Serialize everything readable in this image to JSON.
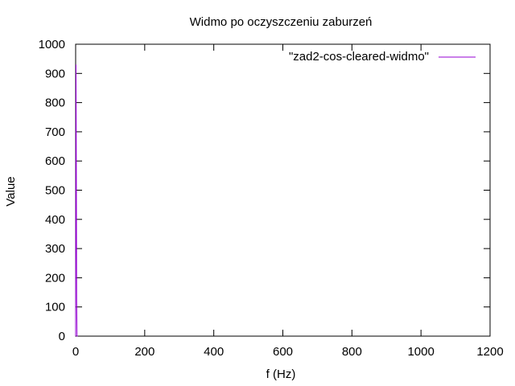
{
  "chart_data": {
    "type": "line",
    "title": "Widmo po oczyszczeniu zaburzeń",
    "xlabel": "f (Hz)",
    "ylabel": "Value",
    "xlim": [
      0,
      1200
    ],
    "ylim": [
      0,
      1000
    ],
    "xticks": [
      0,
      200,
      400,
      600,
      800,
      1000,
      1200
    ],
    "yticks": [
      0,
      100,
      200,
      300,
      400,
      500,
      600,
      700,
      800,
      900,
      1000
    ],
    "grid": false,
    "legend_position": "top-right",
    "series": [
      {
        "name": "\"zad2-cos-cleared-widmo\"",
        "color": "#9400d3",
        "x": [
          0,
          1,
          2,
          3,
          4,
          5,
          6
        ],
        "y": [
          0,
          930,
          600,
          120,
          0,
          0,
          0
        ]
      }
    ]
  }
}
